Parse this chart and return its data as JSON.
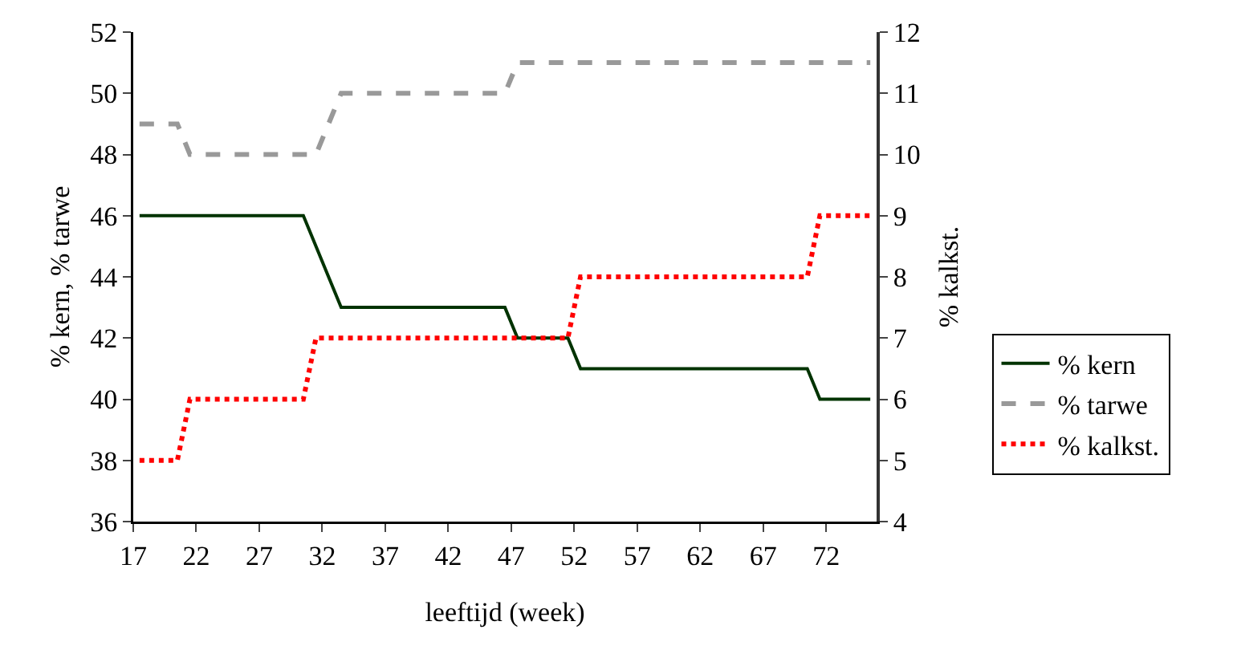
{
  "chart_data": {
    "type": "line",
    "xlabel": "leeftijd (week)",
    "ylabel": "% kern, % tarwe",
    "y2label": "% kalkst.",
    "series": [
      {
        "name": "% kern",
        "color": "#003300",
        "line_style": "solid",
        "x": [
          17.5,
          30.5,
          33.5,
          46.5,
          47.5,
          51.5,
          52.5,
          70.5,
          71.5,
          75.5
        ],
        "values": [
          46,
          46,
          43,
          43,
          42,
          42,
          41,
          41,
          40,
          40
        ]
      },
      {
        "name": "% tarwe",
        "color": "#999999",
        "line_style": "dashed",
        "x": [
          17.5,
          20.5,
          21.5,
          31.5,
          33.5,
          46.5,
          47.5,
          75.5
        ],
        "values": [
          49,
          49,
          48,
          48,
          50,
          50,
          51,
          51
        ]
      },
      {
        "name": "% kalkst.",
        "color": "#ff0000",
        "line_style": "dotted",
        "axis": "y2",
        "x": [
          17.5,
          20.5,
          21.5,
          30.5,
          31.5,
          51.5,
          52.5,
          70.5,
          71.5,
          75.5
        ],
        "values": [
          5,
          5,
          6,
          6,
          7,
          7,
          8,
          8,
          9,
          9
        ]
      }
    ],
    "xlim": [
      17,
      76
    ],
    "xticks": [
      17,
      22,
      27,
      32,
      37,
      42,
      47,
      52,
      57,
      62,
      67,
      72
    ],
    "ylim": [
      36,
      52
    ],
    "yticks": [
      36,
      38,
      40,
      42,
      44,
      46,
      48,
      50,
      52
    ],
    "y2lim": [
      4,
      12
    ],
    "y2ticks": [
      4,
      5,
      6,
      7,
      8,
      9,
      10,
      11,
      12
    ],
    "grid": false,
    "legend": "right",
    "marker": "none"
  }
}
